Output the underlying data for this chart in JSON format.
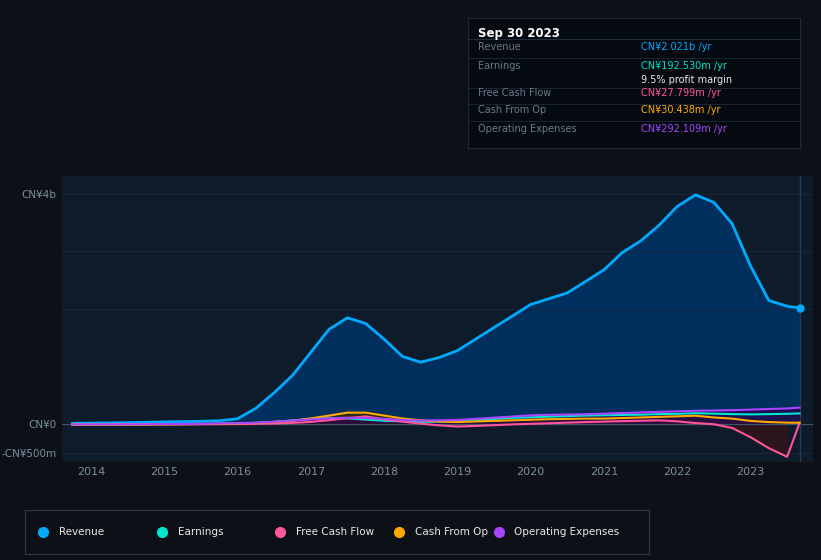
{
  "bg_color": "#0d1117",
  "plot_bg_color": "#0d1b2a",
  "grid_color": "#1e3048",
  "text_color": "#7a8fa0",
  "title_color": "#ffffff",
  "years": [
    2013.75,
    2014.0,
    2014.25,
    2014.5,
    2014.75,
    2015.0,
    2015.25,
    2015.5,
    2015.75,
    2016.0,
    2016.25,
    2016.5,
    2016.75,
    2017.0,
    2017.25,
    2017.5,
    2017.75,
    2018.0,
    2018.25,
    2018.5,
    2018.75,
    2019.0,
    2019.25,
    2019.5,
    2019.75,
    2020.0,
    2020.25,
    2020.5,
    2020.75,
    2021.0,
    2021.25,
    2021.5,
    2021.75,
    2022.0,
    2022.25,
    2022.5,
    2022.75,
    2023.0,
    2023.25,
    2023.5,
    2023.67
  ],
  "revenue": [
    20,
    25,
    28,
    32,
    38,
    45,
    50,
    55,
    65,
    100,
    280,
    550,
    850,
    1250,
    1650,
    1850,
    1750,
    1480,
    1180,
    1080,
    1160,
    1280,
    1480,
    1680,
    1880,
    2080,
    2180,
    2280,
    2480,
    2680,
    2980,
    3180,
    3450,
    3780,
    3980,
    3850,
    3480,
    2750,
    2150,
    2050,
    2021
  ],
  "earnings": [
    -5,
    -3,
    0,
    2,
    4,
    6,
    8,
    10,
    12,
    18,
    25,
    45,
    70,
    95,
    115,
    105,
    85,
    65,
    55,
    45,
    50,
    55,
    75,
    95,
    115,
    125,
    135,
    145,
    155,
    160,
    165,
    170,
    180,
    185,
    195,
    188,
    180,
    175,
    180,
    185,
    192.53
  ],
  "free_cash_flow": [
    0,
    -2,
    -2,
    -1,
    0,
    1,
    2,
    4,
    6,
    8,
    12,
    18,
    28,
    45,
    75,
    110,
    140,
    90,
    50,
    15,
    -15,
    -35,
    -25,
    -12,
    2,
    12,
    22,
    32,
    42,
    50,
    58,
    65,
    72,
    55,
    25,
    5,
    -60,
    -220,
    -410,
    -560,
    27.8
  ],
  "cash_from_op": [
    -3,
    -2,
    -1,
    0,
    1,
    3,
    6,
    9,
    12,
    18,
    28,
    45,
    65,
    105,
    155,
    205,
    205,
    155,
    105,
    72,
    52,
    42,
    52,
    62,
    72,
    82,
    92,
    97,
    102,
    102,
    112,
    122,
    132,
    142,
    152,
    122,
    102,
    62,
    42,
    32,
    30.438
  ],
  "operating_expenses": [
    1,
    1,
    2,
    3,
    5,
    7,
    9,
    12,
    18,
    22,
    32,
    48,
    68,
    88,
    108,
    118,
    112,
    98,
    78,
    68,
    72,
    78,
    98,
    118,
    138,
    158,
    168,
    172,
    178,
    188,
    198,
    208,
    218,
    228,
    238,
    242,
    248,
    258,
    268,
    278,
    292.109
  ],
  "revenue_color": "#00aaff",
  "earnings_color": "#00e5cc",
  "fcf_color": "#ff5599",
  "cashop_color": "#ffaa00",
  "opex_color": "#aa44ff",
  "ytick_values": [
    4000,
    3000,
    2000,
    0,
    -500
  ],
  "ytick_labels": [
    "CN¥4b",
    "",
    "",
    "CN¥0",
    "-CN¥500m"
  ],
  "xtick_labels": [
    "2014",
    "2015",
    "2016",
    "2017",
    "2018",
    "2019",
    "2020",
    "2021",
    "2022",
    "2023"
  ],
  "xtick_values": [
    2014,
    2015,
    2016,
    2017,
    2018,
    2019,
    2020,
    2021,
    2022,
    2023
  ],
  "ymin": -650,
  "ymax": 4300,
  "tooltip_date": "Sep 30 2023",
  "tooltip_revenue_label": "Revenue",
  "tooltip_revenue_value": "CN¥2.021b",
  "tooltip_revenue_color": "#00aaff",
  "tooltip_earnings_label": "Earnings",
  "tooltip_earnings_value": "CN¥192.530m",
  "tooltip_earnings_color": "#00e5cc",
  "tooltip_margin_text": "9.5% profit margin",
  "tooltip_fcf_label": "Free Cash Flow",
  "tooltip_fcf_value": "CN¥27.799m",
  "tooltip_fcf_color": "#ff5599",
  "tooltip_cashop_label": "Cash From Op",
  "tooltip_cashop_value": "CN¥30.438m",
  "tooltip_cashop_color": "#ffaa00",
  "tooltip_opex_label": "Operating Expenses",
  "tooltip_opex_value": "CN¥292.109m",
  "tooltip_opex_color": "#aa44ff",
  "legend_items": [
    "Revenue",
    "Earnings",
    "Free Cash Flow",
    "Cash From Op",
    "Operating Expenses"
  ],
  "legend_colors": [
    "#00aaff",
    "#00e5cc",
    "#ff5599",
    "#ffaa00",
    "#aa44ff"
  ]
}
